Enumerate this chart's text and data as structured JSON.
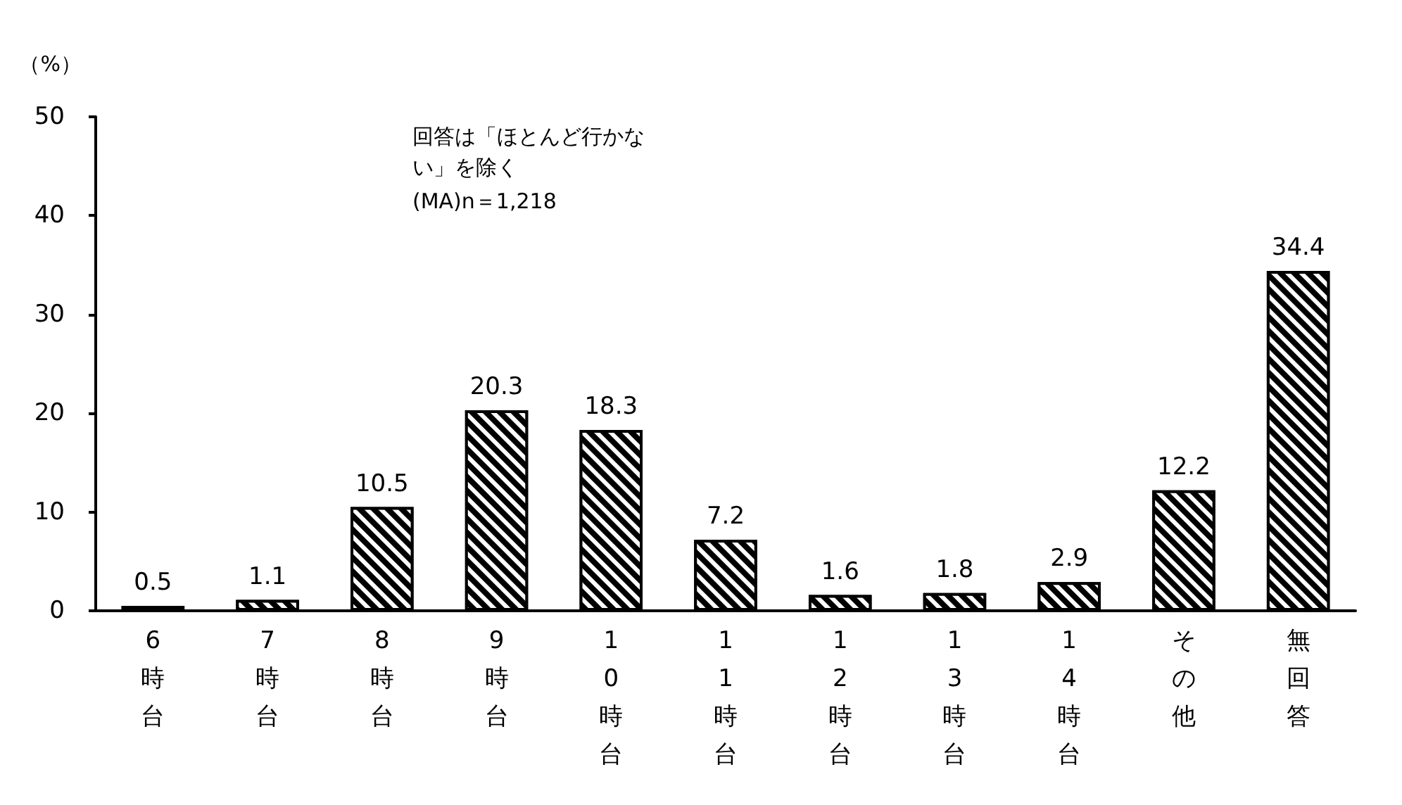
{
  "chart_data": {
    "type": "bar",
    "ylabel": "（%）",
    "annotations": [
      "回答は「ほとんど行かない」を除く",
      "(MA)n＝1,218"
    ],
    "categories": [
      "6時台",
      "7時台",
      "8時台",
      "9時台",
      "10時台",
      "11時台",
      "12時台",
      "13時台",
      "14時台",
      "その他",
      "無回答"
    ],
    "values": [
      0.5,
      1.1,
      10.5,
      20.3,
      18.3,
      7.2,
      1.6,
      1.8,
      2.9,
      12.2,
      34.4
    ],
    "color": "#000000",
    "ylim": [
      0,
      50
    ],
    "yticks": [
      0,
      10,
      20,
      30,
      40,
      50
    ],
    "grid": false,
    "data_labels": true
  }
}
